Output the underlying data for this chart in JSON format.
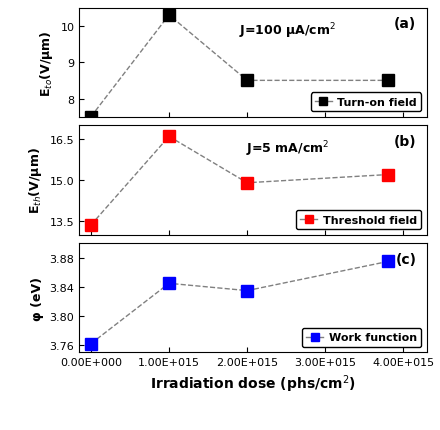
{
  "x": [
    0,
    1000000000000000.0,
    2000000000000000.0,
    3800000000000000.0
  ],
  "eto_values": [
    7.5,
    10.3,
    8.5,
    8.5
  ],
  "eth_values": [
    13.35,
    16.6,
    14.9,
    15.2
  ],
  "phi_values": [
    3.762,
    3.845,
    3.835,
    3.875
  ],
  "eto_ylim": [
    7.5,
    10.5
  ],
  "eth_ylim": [
    13.0,
    17.0
  ],
  "phi_ylim": [
    3.75,
    3.9
  ],
  "eto_yticks": [
    8.0,
    9.0,
    10.0
  ],
  "eth_yticks": [
    13.5,
    15.0,
    16.5
  ],
  "phi_yticks": [
    3.76,
    3.8,
    3.84,
    3.88
  ],
  "eto_ylabel": "E$_{to}$(V/μm)",
  "eth_ylabel": "E$_{th}$(V/μm)",
  "phi_ylabel": "φ (eV)",
  "xlabel": "Irradiation dose (phs/cm$^2$)",
  "label_a": "J=100 μA/cm$^2$",
  "label_b": "J=5 mA/cm$^2$",
  "panel_labels": [
    "(a)",
    "(b)",
    "(c)"
  ],
  "legend_labels": [
    "Turn-on field",
    "Threshold field",
    "Work function"
  ],
  "colors": [
    "black",
    "red",
    "blue"
  ],
  "line_color": "gray",
  "marker": "s",
  "markersize": 8,
  "linewidth": 1.0
}
